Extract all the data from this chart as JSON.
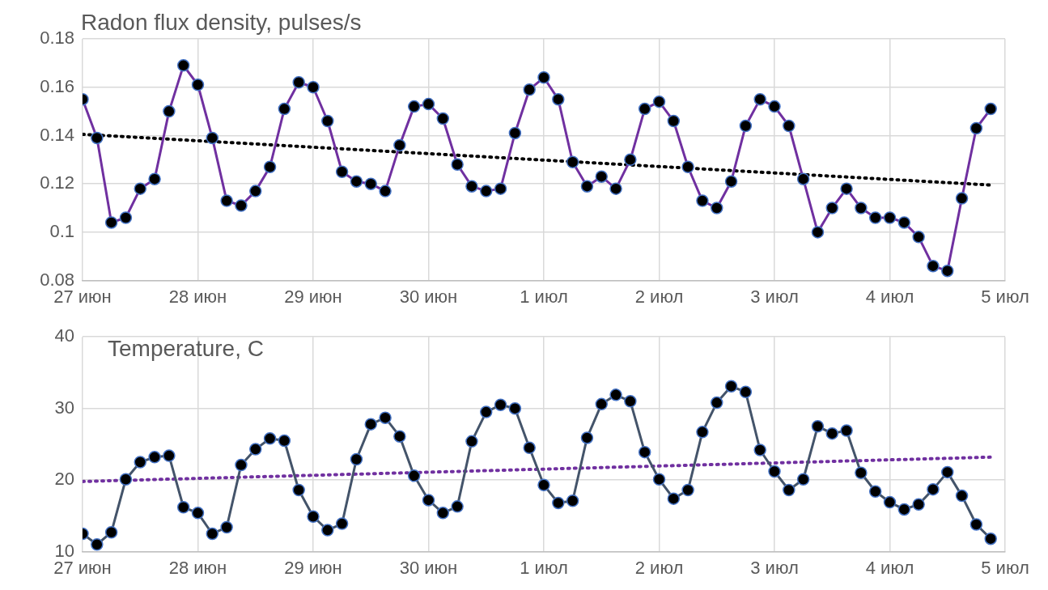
{
  "chart_data": [
    {
      "type": "line",
      "title": "Radon flux density, pulses/s",
      "x": [
        "--06-27T00:00",
        "--06-27T03:00",
        "--06-27T06:00",
        "--06-27T09:00",
        "--06-27T12:00",
        "--06-27T15:00",
        "--06-27T18:00",
        "--06-27T21:00",
        "--06-28T00:00",
        "--06-28T03:00",
        "--06-28T06:00",
        "--06-28T09:00",
        "--06-28T12:00",
        "--06-28T15:00",
        "--06-28T18:00",
        "--06-28T21:00",
        "--06-29T00:00",
        "--06-29T03:00",
        "--06-29T06:00",
        "--06-29T09:00",
        "--06-29T12:00",
        "--06-29T15:00",
        "--06-29T18:00",
        "--06-29T21:00",
        "--06-30T00:00",
        "--06-30T03:00",
        "--06-30T06:00",
        "--06-30T09:00",
        "--06-30T12:00",
        "--06-30T15:00",
        "--06-30T18:00",
        "--06-30T21:00",
        "--07-01T00:00",
        "--07-01T03:00",
        "--07-01T06:00",
        "--07-01T09:00",
        "--07-01T12:00",
        "--07-01T15:00",
        "--07-01T18:00",
        "--07-01T21:00",
        "--07-02T00:00",
        "--07-02T03:00",
        "--07-02T06:00",
        "--07-02T09:00",
        "--07-02T12:00",
        "--07-02T15:00",
        "--07-02T18:00",
        "--07-02T21:00",
        "--07-03T00:00",
        "--07-03T03:00",
        "--07-03T06:00",
        "--07-03T09:00",
        "--07-03T12:00",
        "--07-03T15:00",
        "--07-03T18:00",
        "--07-03T21:00",
        "--07-04T00:00",
        "--07-04T03:00",
        "--07-04T06:00",
        "--07-04T09:00",
        "--07-04T12:00",
        "--07-04T15:00",
        "--07-04T18:00",
        "--07-04T21:00"
      ],
      "series": [
        {
          "color": "#7030a0",
          "marker": "circle",
          "values": [
            0.155,
            0.139,
            0.104,
            0.106,
            0.118,
            0.122,
            0.15,
            0.169,
            0.161,
            0.139,
            0.113,
            0.111,
            0.117,
            0.127,
            0.151,
            0.162,
            0.16,
            0.146,
            0.125,
            0.121,
            0.12,
            0.117,
            0.136,
            0.152,
            0.153,
            0.147,
            0.128,
            0.119,
            0.117,
            0.118,
            0.141,
            0.159,
            0.164,
            0.155,
            0.129,
            0.119,
            0.123,
            0.118,
            0.13,
            0.151,
            0.154,
            0.146,
            0.127,
            0.113,
            0.11,
            0.121,
            0.144,
            0.155,
            0.152,
            0.144,
            0.122,
            0.1,
            0.11,
            0.118,
            0.11,
            0.106,
            0.106,
            0.104,
            0.098,
            0.086,
            0.084,
            0.114,
            0.143,
            0.151
          ]
        },
        {
          "type": "line",
          "color": "#000000",
          "marker": "none",
          "line_style": "dotted",
          "x": [
            "--06-27T00:00",
            "--07-04T21:00"
          ],
          "values": [
            0.1405,
            0.1195
          ]
        }
      ],
      "xlim": [
        "--06-27",
        "--07-05"
      ],
      "xticks": [
        {
          "value": "--06-27",
          "label": "27 июн"
        },
        {
          "value": "--06-28",
          "label": "28 июн"
        },
        {
          "value": "--06-29",
          "label": "29 июн"
        },
        {
          "value": "--06-30",
          "label": "30 июн"
        },
        {
          "value": "--07-01",
          "label": "1 июл"
        },
        {
          "value": "--07-02",
          "label": "2 июл"
        },
        {
          "value": "--07-03",
          "label": "3 июл"
        },
        {
          "value": "--07-04",
          "label": "4 июл"
        },
        {
          "value": "--07-05",
          "label": "5 июл"
        }
      ],
      "ylim": [
        0.08,
        0.18
      ],
      "yticks": [
        {
          "value": 0.08,
          "label": "0.08"
        },
        {
          "value": 0.1,
          "label": "0.1"
        },
        {
          "value": 0.12,
          "label": "0.12"
        },
        {
          "value": 0.14,
          "label": "0.14"
        },
        {
          "value": 0.16,
          "label": "0.16"
        },
        {
          "value": 0.18,
          "label": "0.18"
        }
      ],
      "grid": true,
      "legend": false
    },
    {
      "type": "line",
      "title": "Temperature, C",
      "x": [
        "--06-27T00:00",
        "--06-27T03:00",
        "--06-27T06:00",
        "--06-27T09:00",
        "--06-27T12:00",
        "--06-27T15:00",
        "--06-27T18:00",
        "--06-27T21:00",
        "--06-28T00:00",
        "--06-28T03:00",
        "--06-28T06:00",
        "--06-28T09:00",
        "--06-28T12:00",
        "--06-28T15:00",
        "--06-28T18:00",
        "--06-28T21:00",
        "--06-29T00:00",
        "--06-29T03:00",
        "--06-29T06:00",
        "--06-29T09:00",
        "--06-29T12:00",
        "--06-29T15:00",
        "--06-29T18:00",
        "--06-29T21:00",
        "--06-30T00:00",
        "--06-30T03:00",
        "--06-30T06:00",
        "--06-30T09:00",
        "--06-30T12:00",
        "--06-30T15:00",
        "--06-30T18:00",
        "--06-30T21:00",
        "--07-01T00:00",
        "--07-01T03:00",
        "--07-01T06:00",
        "--07-01T09:00",
        "--07-01T12:00",
        "--07-01T15:00",
        "--07-01T18:00",
        "--07-01T21:00",
        "--07-02T00:00",
        "--07-02T03:00",
        "--07-02T06:00",
        "--07-02T09:00",
        "--07-02T12:00",
        "--07-02T15:00",
        "--07-02T18:00",
        "--07-02T21:00",
        "--07-03T00:00",
        "--07-03T03:00",
        "--07-03T06:00",
        "--07-03T09:00",
        "--07-03T12:00",
        "--07-03T15:00",
        "--07-03T18:00",
        "--07-03T21:00",
        "--07-04T00:00",
        "--07-04T03:00",
        "--07-04T06:00",
        "--07-04T09:00",
        "--07-04T12:00",
        "--07-04T15:00",
        "--07-04T18:00",
        "--07-04T21:00"
      ],
      "series": [
        {
          "color": "#44546a",
          "marker": "circle",
          "values": [
            12.5,
            11.0,
            12.7,
            20.1,
            22.5,
            23.2,
            23.4,
            16.2,
            15.4,
            12.5,
            13.4,
            22.1,
            24.3,
            25.8,
            25.5,
            18.6,
            14.9,
            13.0,
            13.9,
            22.9,
            27.8,
            28.7,
            26.1,
            20.6,
            17.2,
            15.4,
            16.3,
            25.4,
            29.5,
            30.5,
            30.0,
            24.5,
            19.3,
            16.8,
            17.1,
            25.9,
            30.6,
            31.9,
            31.0,
            23.9,
            20.1,
            17.4,
            18.6,
            26.7,
            30.8,
            33.1,
            32.3,
            24.2,
            21.2,
            18.6,
            20.1,
            27.5,
            26.5,
            26.9,
            21.0,
            18.4,
            16.9,
            15.9,
            16.6,
            18.7,
            21.1,
            17.8,
            13.8,
            11.8
          ]
        },
        {
          "type": "line",
          "color": "#7030a0",
          "marker": "none",
          "line_style": "dotted",
          "x": [
            "--06-27T00:00",
            "--07-04T21:00"
          ],
          "values": [
            19.8,
            23.2
          ]
        }
      ],
      "xlim": [
        "--06-27",
        "--07-05"
      ],
      "xticks": [
        {
          "value": "--06-27",
          "label": "27 июн"
        },
        {
          "value": "--06-28",
          "label": "28 июн"
        },
        {
          "value": "--06-29",
          "label": "29 июн"
        },
        {
          "value": "--06-30",
          "label": "30 июн"
        },
        {
          "value": "--07-01",
          "label": "1 июл"
        },
        {
          "value": "--07-02",
          "label": "2 июл"
        },
        {
          "value": "--07-03",
          "label": "3 июл"
        },
        {
          "value": "--07-04",
          "label": "4 июл"
        },
        {
          "value": "--07-05",
          "label": "5 июл"
        }
      ],
      "ylim": [
        10,
        40
      ],
      "yticks": [
        10,
        20,
        30,
        40
      ],
      "grid": true,
      "legend": false
    }
  ]
}
